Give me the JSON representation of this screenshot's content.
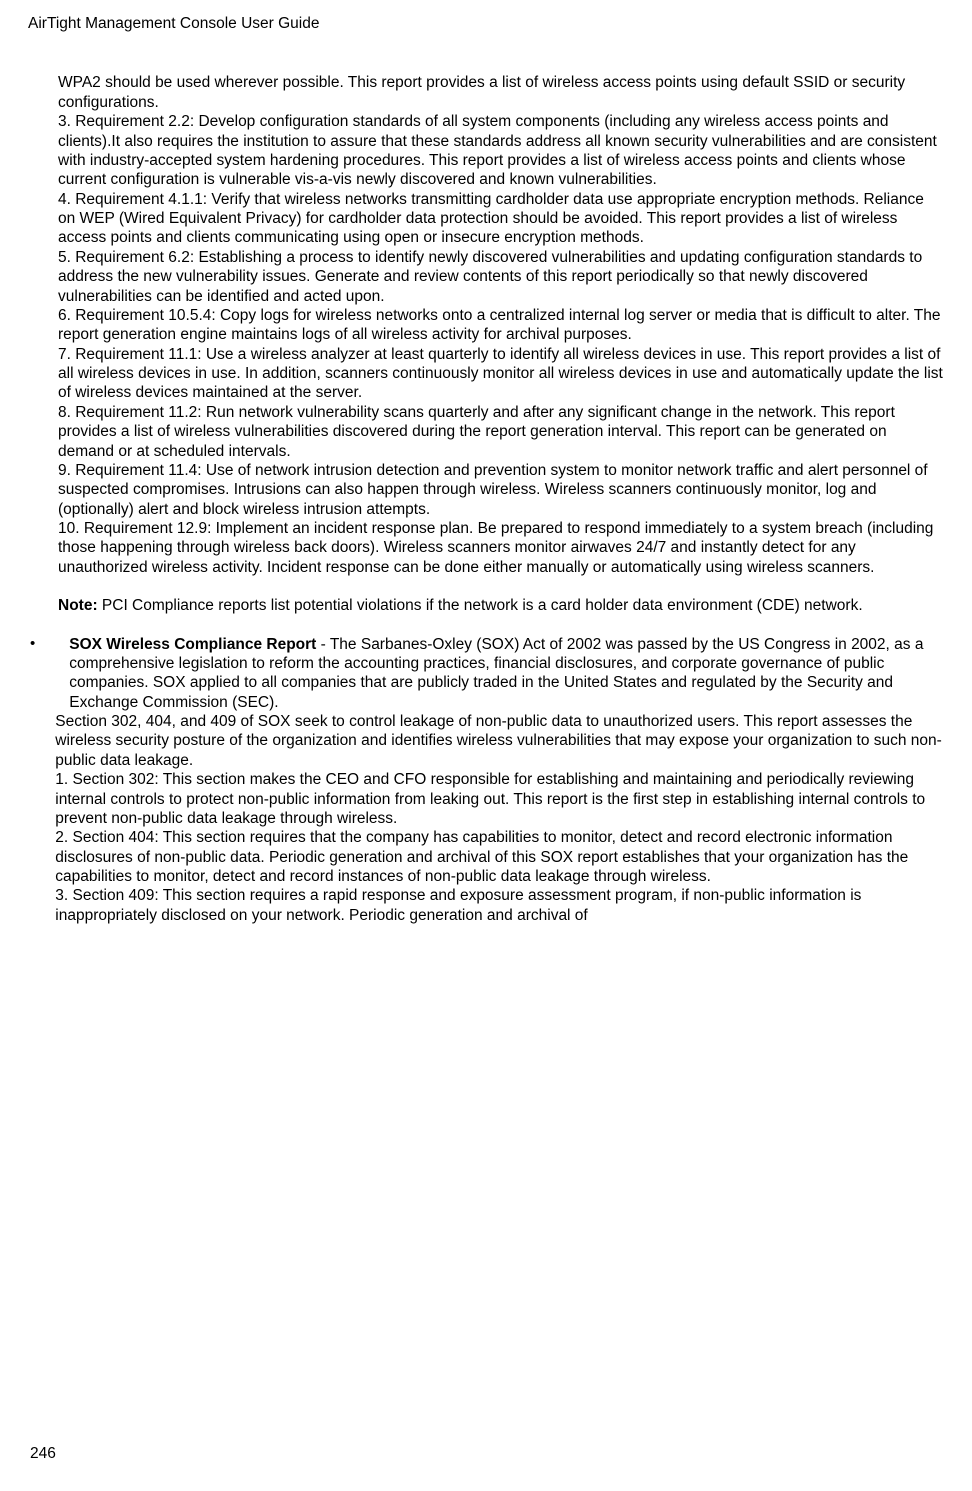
{
  "header": "AirTight Management Console User Guide",
  "pageNumber": "246",
  "paragraphs": {
    "pci_intro": "WPA2 should be used wherever possible. This report provides a list of wireless access points using default SSID or security configurations.",
    "pci_3": "3. Requirement 2.2: Develop configuration standards of all system components (including any wireless access points and clients).It also requires the institution to assure that these standards address all known security vulnerabilities and are consistent with industry-accepted system hardening procedures. This report provides a list of wireless access points and clients whose current configuration is vulnerable vis-a-vis newly discovered and known vulnerabilities.",
    "pci_4": "4. Requirement 4.1.1: Verify that wireless networks transmitting cardholder data use appropriate encryption methods. Reliance on WEP (Wired Equivalent Privacy) for cardholder data protection should be avoided. This report provides a list of wireless access points and clients communicating using open or insecure encryption methods.",
    "pci_5": "5. Requirement 6.2: Establishing a process to identify newly discovered vulnerabilities and updating configuration standards to address the new vulnerability issues. Generate and review contents of this report periodically so that newly discovered vulnerabilities can be identified and acted upon.",
    "pci_6": "6. Requirement 10.5.4: Copy logs for wireless networks onto a centralized internal log server or media that is difficult to alter. The report generation engine maintains logs of all wireless activity for archival purposes.",
    "pci_7": "7. Requirement 11.1: Use a wireless analyzer at least quarterly to identify all wireless devices in use. This report provides a list of all wireless devices in use. In addition, scanners continuously monitor all wireless devices in use and automatically update the list of wireless devices maintained at the server.",
    "pci_8": "8. Requirement 11.2: Run network vulnerability scans quarterly and after any significant change in the network. This report provides a list of wireless vulnerabilities discovered during the report generation interval. This report can be generated on demand or at scheduled intervals.",
    "pci_9": "9. Requirement 11.4: Use of network intrusion detection and prevention system to monitor network traffic and alert personnel of suspected compromises. Intrusions can also happen through wireless. Wireless scanners continuously monitor, log and (optionally) alert and block wireless intrusion attempts.",
    "pci_10": "10. Requirement 12.9: Implement an incident response plan. Be prepared to respond immediately to a system breach (including those happening through wireless back doors). Wireless scanners monitor airwaves 24/7 and instantly detect for any unauthorized wireless activity. Incident response can be done either manually or automatically using wireless scanners.",
    "note_label": "Note:",
    "note_text": " PCI Compliance reports list potential violations if the network is a card holder data environment (CDE) network.",
    "sox_title": "SOX Wireless Compliance Report",
    "sox_intro": " - The Sarbanes-Oxley (SOX) Act of 2002 was passed by the US Congress in 2002, as a comprehensive legislation to reform the accounting practices, financial disclosures, and corporate governance of public companies. SOX applied to all companies that are publicly traded in the United States and regulated by the Security and Exchange Commission (SEC).",
    "sox_sections": "Section 302, 404, and 409 of SOX seek to control leakage of non-public data to unauthorized users. This report assesses the wireless security posture of the organization and identifies wireless vulnerabilities that may expose your organization to such non-public data leakage.",
    "sox_1": "1. Section 302: This section makes the CEO and CFO responsible for establishing and maintaining and periodically reviewing internal controls to protect non-public information from leaking out. This report is the first step in establishing internal controls to prevent non-public data leakage through wireless.",
    "sox_2": "2. Section 404: This section requires that the company has capabilities to monitor, detect and record electronic information disclosures of non-public data. Periodic generation and archival of this SOX report establishes that your organization has the capabilities to monitor, detect and record instances of non-public data leakage through wireless.",
    "sox_3": "3. Section 409: This section requires a rapid response and exposure assessment program, if non-public information is inappropriately disclosed on your network. Periodic generation and archival of"
  }
}
